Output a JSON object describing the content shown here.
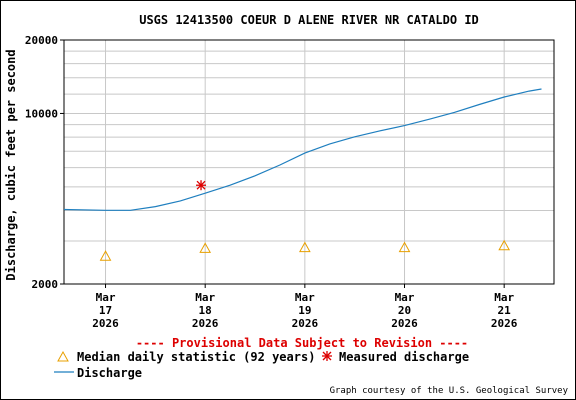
{
  "chart_data": {
    "type": "line",
    "title": "USGS 12413500 COEUR D ALENE RIVER NR CATALDO ID",
    "ylabel": "Discharge, cubic feet per second",
    "y_scale": "log",
    "ylim": [
      2000,
      20000
    ],
    "y_tick_labels": [
      "2000",
      "10000",
      "20000"
    ],
    "xlim": [
      "2026-03-16T14:00",
      "2026-03-21T12:00"
    ],
    "x_ticks": [
      {
        "date": "2026-03-17T00:00",
        "label": [
          "Mar",
          "17",
          "2026"
        ]
      },
      {
        "date": "2026-03-18T00:00",
        "label": [
          "Mar",
          "18",
          "2026"
        ]
      },
      {
        "date": "2026-03-19T00:00",
        "label": [
          "Mar",
          "19",
          "2026"
        ]
      },
      {
        "date": "2026-03-20T00:00",
        "label": [
          "Mar",
          "20",
          "2026"
        ]
      },
      {
        "date": "2026-03-21T00:00",
        "label": [
          "Mar",
          "21",
          "2026"
        ]
      }
    ],
    "grid": true,
    "notice": "---- Provisional Data Subject to Revision ----",
    "credit": "Graph courtesy of the U.S. Geological Survey",
    "series": [
      {
        "name": "Discharge",
        "kind": "line",
        "color": "#1f7fbf",
        "points": [
          {
            "x": "2026-03-16T14:00",
            "y": 4040
          },
          {
            "x": "2026-03-17T00:00",
            "y": 4010
          },
          {
            "x": "2026-03-17T06:00",
            "y": 4010
          },
          {
            "x": "2026-03-17T12:00",
            "y": 4150
          },
          {
            "x": "2026-03-17T18:00",
            "y": 4380
          },
          {
            "x": "2026-03-18T00:00",
            "y": 4710
          },
          {
            "x": "2026-03-18T06:00",
            "y": 5080
          },
          {
            "x": "2026-03-18T12:00",
            "y": 5550
          },
          {
            "x": "2026-03-18T18:00",
            "y": 6150
          },
          {
            "x": "2026-03-19T00:00",
            "y": 6880
          },
          {
            "x": "2026-03-19T06:00",
            "y": 7500
          },
          {
            "x": "2026-03-19T12:00",
            "y": 8020
          },
          {
            "x": "2026-03-19T18:00",
            "y": 8480
          },
          {
            "x": "2026-03-20T00:00",
            "y": 8920
          },
          {
            "x": "2026-03-20T06:00",
            "y": 9470
          },
          {
            "x": "2026-03-20T12:00",
            "y": 10100
          },
          {
            "x": "2026-03-20T18:00",
            "y": 10880
          },
          {
            "x": "2026-03-21T00:00",
            "y": 11680
          },
          {
            "x": "2026-03-21T06:00",
            "y": 12350
          },
          {
            "x": "2026-03-21T09:00",
            "y": 12600
          }
        ]
      },
      {
        "name": "Median daily statistic (92 years)",
        "kind": "marker",
        "marker": "triangle",
        "color": "#e8a000",
        "points": [
          {
            "x": "2026-03-17T00:00",
            "y": 2600
          },
          {
            "x": "2026-03-18T00:00",
            "y": 2800
          },
          {
            "x": "2026-03-19T00:00",
            "y": 2820
          },
          {
            "x": "2026-03-20T00:00",
            "y": 2820
          },
          {
            "x": "2026-03-21T00:00",
            "y": 2870
          }
        ]
      },
      {
        "name": "Measured discharge",
        "kind": "marker",
        "marker": "asterisk",
        "color": "#dd0000",
        "points": [
          {
            "x": "2026-03-17T23:00",
            "y": 5080
          }
        ]
      }
    ]
  }
}
